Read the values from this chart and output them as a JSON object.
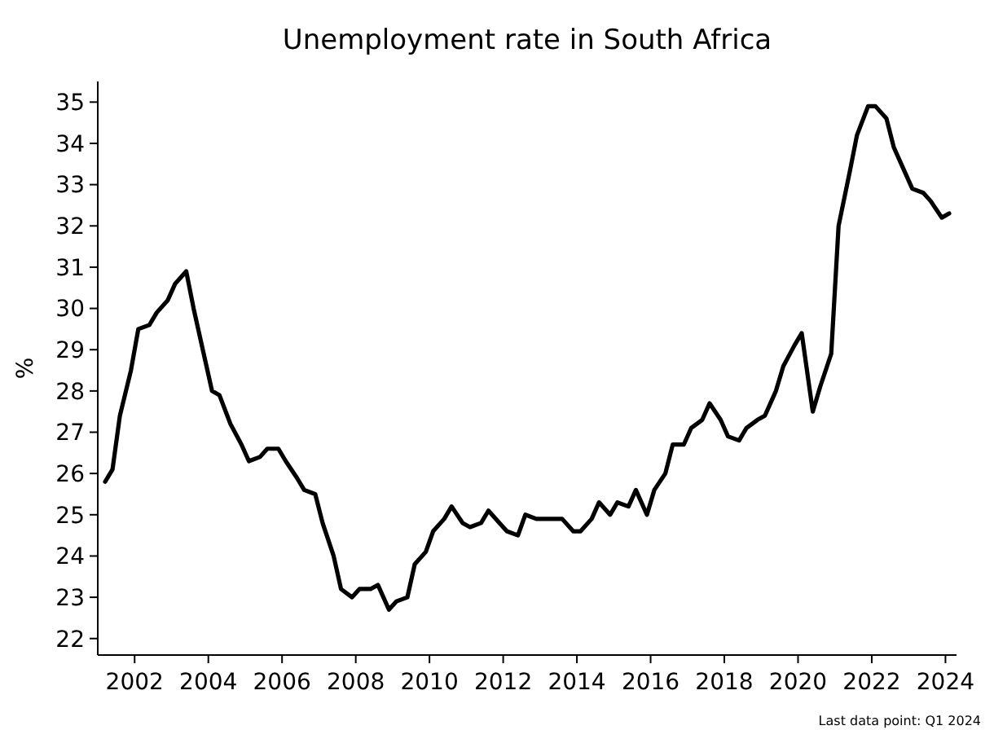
{
  "chart_data": {
    "type": "line",
    "title": "Unemployment rate in South Africa",
    "ylabel": "%",
    "annotations": [
      "Last data point: Q1 2024"
    ],
    "xlim": [
      2001,
      2024.3
    ],
    "ylim": [
      21.6,
      35.5
    ],
    "xticks": [
      2002,
      2004,
      2006,
      2008,
      2010,
      2012,
      2014,
      2016,
      2018,
      2020,
      2022,
      2024
    ],
    "yticks": [
      22,
      23,
      24,
      25,
      26,
      27,
      28,
      29,
      30,
      31,
      32,
      33,
      34,
      35
    ],
    "marker": "none",
    "line_style": "solid",
    "series": [
      {
        "color": "#000000",
        "x": [
          2001.2,
          2001.4,
          2001.6,
          2001.9,
          2002.1,
          2002.4,
          2002.6,
          2002.9,
          2003.1,
          2003.4,
          2003.6,
          2003.9,
          2004.1,
          2004.3,
          2004.6,
          2004.9,
          2005.1,
          2005.4,
          2005.6,
          2005.9,
          2006.1,
          2006.4,
          2006.6,
          2006.9,
          2007.1,
          2007.4,
          2007.6,
          2007.9,
          2008.1,
          2008.4,
          2008.6,
          2008.9,
          2009.1,
          2009.4,
          2009.6,
          2009.9,
          2010.1,
          2010.4,
          2010.6,
          2010.9,
          2011.1,
          2011.4,
          2011.6,
          2011.9,
          2012.1,
          2012.4,
          2012.6,
          2012.9,
          2013.1,
          2013.4,
          2013.6,
          2013.9,
          2014.1,
          2014.4,
          2014.6,
          2014.9,
          2015.1,
          2015.4,
          2015.6,
          2015.9,
          2016.1,
          2016.4,
          2016.6,
          2016.9,
          2017.1,
          2017.4,
          2017.6,
          2017.9,
          2018.1,
          2018.4,
          2018.6,
          2018.9,
          2019.1,
          2019.4,
          2019.6,
          2019.9,
          2020.1,
          2020.4,
          2020.6,
          2020.9,
          2021.1,
          2021.4,
          2021.6,
          2021.9,
          2022.1,
          2022.4,
          2022.6,
          2022.9,
          2023.1,
          2023.4,
          2023.6,
          2023.9,
          2024.1
        ],
        "values": [
          25.8,
          26.1,
          27.4,
          28.5,
          29.5,
          29.6,
          29.9,
          30.2,
          30.6,
          30.9,
          30.0,
          28.8,
          28.0,
          27.9,
          27.2,
          26.7,
          26.3,
          26.4,
          26.6,
          26.6,
          26.3,
          25.9,
          25.6,
          25.5,
          24.8,
          24.0,
          23.2,
          23.0,
          23.2,
          23.2,
          23.3,
          22.7,
          22.9,
          23.0,
          23.8,
          24.1,
          24.6,
          24.9,
          25.2,
          24.8,
          24.7,
          24.8,
          25.1,
          24.8,
          24.6,
          24.5,
          25.0,
          24.9,
          24.9,
          24.9,
          24.9,
          24.6,
          24.6,
          24.9,
          25.3,
          25.0,
          25.3,
          25.2,
          25.6,
          25.0,
          25.6,
          26.0,
          26.7,
          26.7,
          27.1,
          27.3,
          27.7,
          27.3,
          26.9,
          26.8,
          27.1,
          27.3,
          27.4,
          28.0,
          28.6,
          29.1,
          29.4,
          27.5,
          28.1,
          28.9,
          32.0,
          33.3,
          34.2,
          34.9,
          34.9,
          34.6,
          33.9,
          33.3,
          32.9,
          32.8,
          32.6,
          32.2,
          32.3
        ]
      }
    ]
  }
}
